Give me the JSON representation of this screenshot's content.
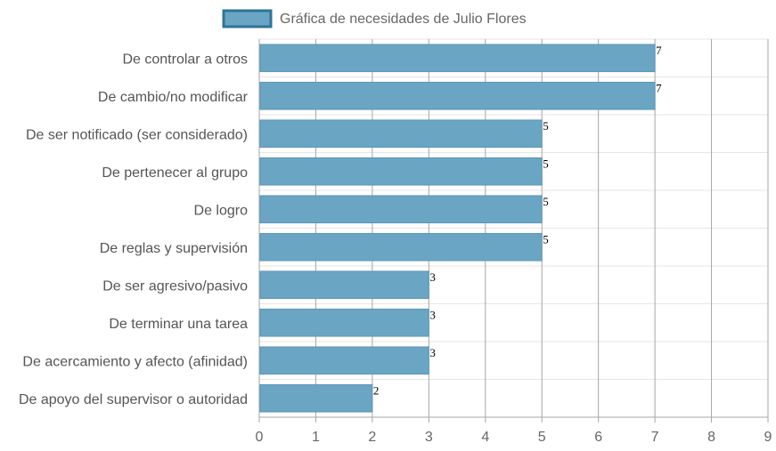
{
  "chart_data": {
    "type": "bar",
    "orientation": "horizontal",
    "categories": [
      "De controlar a otros",
      "De cambio/no modificar",
      "De ser notificado (ser considerado)",
      "De pertenecer al grupo",
      "De logro",
      "De reglas y supervisión",
      "De ser agresivo/pasivo",
      "De terminar una tarea",
      "De acercamiento y afecto (afinidad)",
      "De apoyo del supervisor o autoridad"
    ],
    "series": [
      {
        "name": "Gráfica de necesidades de Julio Flores",
        "values": [
          7,
          7,
          5,
          5,
          5,
          5,
          3,
          3,
          3,
          2
        ]
      }
    ],
    "xlim": [
      0,
      9
    ],
    "xticks": [
      "0",
      "1",
      "2",
      "3",
      "4",
      "5",
      "6",
      "7",
      "8",
      "9"
    ],
    "grid": true,
    "legend_position": "top",
    "data_labels": true,
    "colors": {
      "bar_fill": "#6aa5c3",
      "bar_stroke": "#5b97b8",
      "legend_fill": "#6aa5c3",
      "legend_stroke": "#2e7499",
      "grid_major": "#a6a6a6",
      "grid_minor": "#e6e6e6"
    }
  }
}
